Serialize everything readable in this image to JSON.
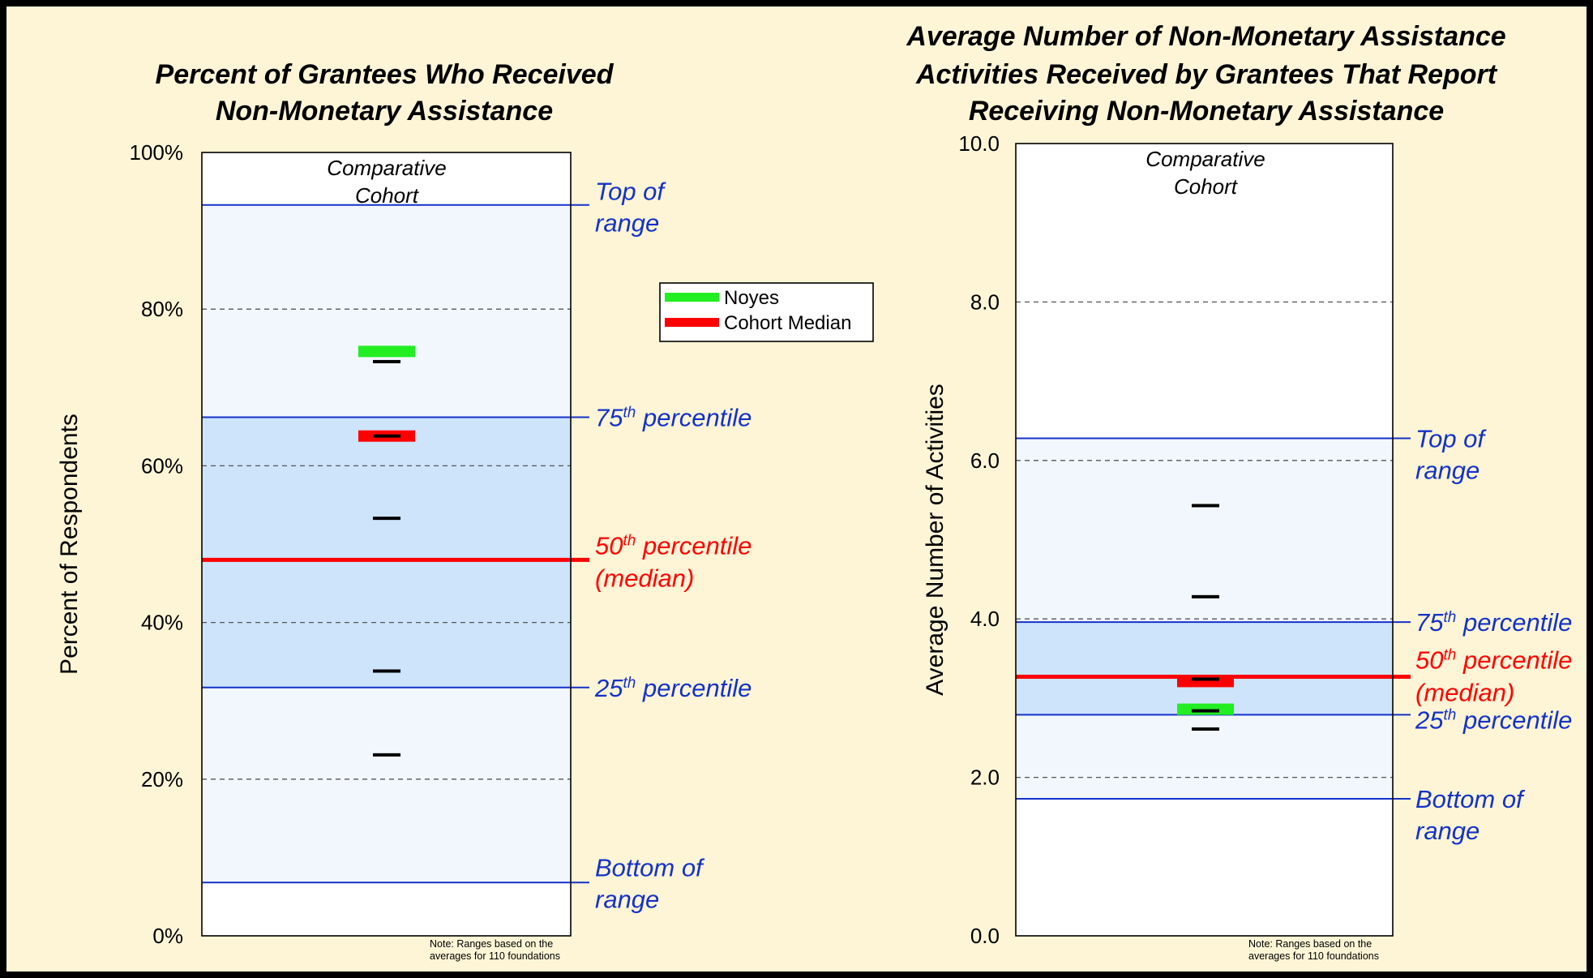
{
  "colors": {
    "background": "#fdf5d6",
    "range_outer_fill": "#f2f7fd",
    "range_inner_fill": "#cde4fb",
    "range_line": "#1432c8",
    "median_line": "#ff0000",
    "noyes_marker": "#22ee22",
    "cohort_median_marker": "#ff0000",
    "foundation_tick": "#000000"
  },
  "legend": {
    "items": [
      {
        "label": "Noyes",
        "color": "#22ee22"
      },
      {
        "label": "Cohort Median",
        "color": "#ff0000"
      }
    ]
  },
  "chart_data": [
    {
      "type": "range-chart",
      "title_lines": [
        "Percent of Grantees Who Received",
        "Non-Monetary Assistance"
      ],
      "ylabel": "Percent of Respondents",
      "ylim": [
        0,
        100
      ],
      "yticks": [
        0,
        20,
        40,
        60,
        80,
        100
      ],
      "ytick_labels": [
        "0%",
        "20%",
        "40%",
        "60%",
        "80%",
        "100%"
      ],
      "dashed_gridlines": [
        20,
        40,
        60,
        80
      ],
      "cohort_label_lines": [
        "Comparative",
        "Cohort"
      ],
      "ranges": {
        "bottom": 6.8,
        "p25": 31.7,
        "median": 48.0,
        "p75": 66.2,
        "top": 93.3
      },
      "range_labels": {
        "top": [
          "Top of",
          "range"
        ],
        "p75": {
          "num": "75",
          "sup": "th",
          "rest": " percentile"
        },
        "median": {
          "num": "50",
          "sup": "th",
          "rest": " percentile",
          "line2": "(median)"
        },
        "p25": {
          "num": "25",
          "sup": "th",
          "rest": " percentile"
        },
        "bottom": [
          "Bottom of",
          "range"
        ]
      },
      "noyes_value": 74.6,
      "cohort_median_value": 63.8,
      "foundation_values": [
        73.3,
        63.8,
        53.3,
        33.8,
        23.1
      ],
      "note_lines": [
        "Note: Ranges based on the",
        "averages for 110 foundations"
      ]
    },
    {
      "type": "range-chart",
      "title_lines": [
        "Average Number of Non-Monetary Assistance",
        "Activities Received by Grantees That Report",
        "Receiving Non-Monetary Assistance"
      ],
      "ylabel": "Average Number of Activities",
      "ylim": [
        0,
        10
      ],
      "yticks": [
        0,
        2,
        4,
        6,
        8,
        10
      ],
      "ytick_labels": [
        "0.0",
        "2.0",
        "4.0",
        "6.0",
        "8.0",
        "10.0"
      ],
      "dashed_gridlines": [
        2,
        4,
        6,
        8
      ],
      "cohort_label_lines": [
        "Comparative",
        "Cohort"
      ],
      "ranges": {
        "bottom": 1.73,
        "p25": 2.79,
        "median": 3.27,
        "p75": 3.96,
        "top": 6.28
      },
      "range_labels": {
        "top": [
          "Top of",
          "range"
        ],
        "p75": {
          "num": "75",
          "sup": "th",
          "rest": " percentile"
        },
        "median": {
          "num": "50",
          "sup": "th",
          "rest": " percentile",
          "line2": "(median)"
        },
        "p25": {
          "num": "25",
          "sup": "th",
          "rest": " percentile"
        },
        "bottom": [
          "Bottom of",
          "range"
        ]
      },
      "noyes_value": 2.86,
      "cohort_median_value": 3.21,
      "foundation_values": [
        5.43,
        4.28,
        3.24,
        2.84,
        2.61
      ],
      "note_lines": [
        "Note: Ranges based on the",
        "averages for 110 foundations"
      ]
    }
  ]
}
